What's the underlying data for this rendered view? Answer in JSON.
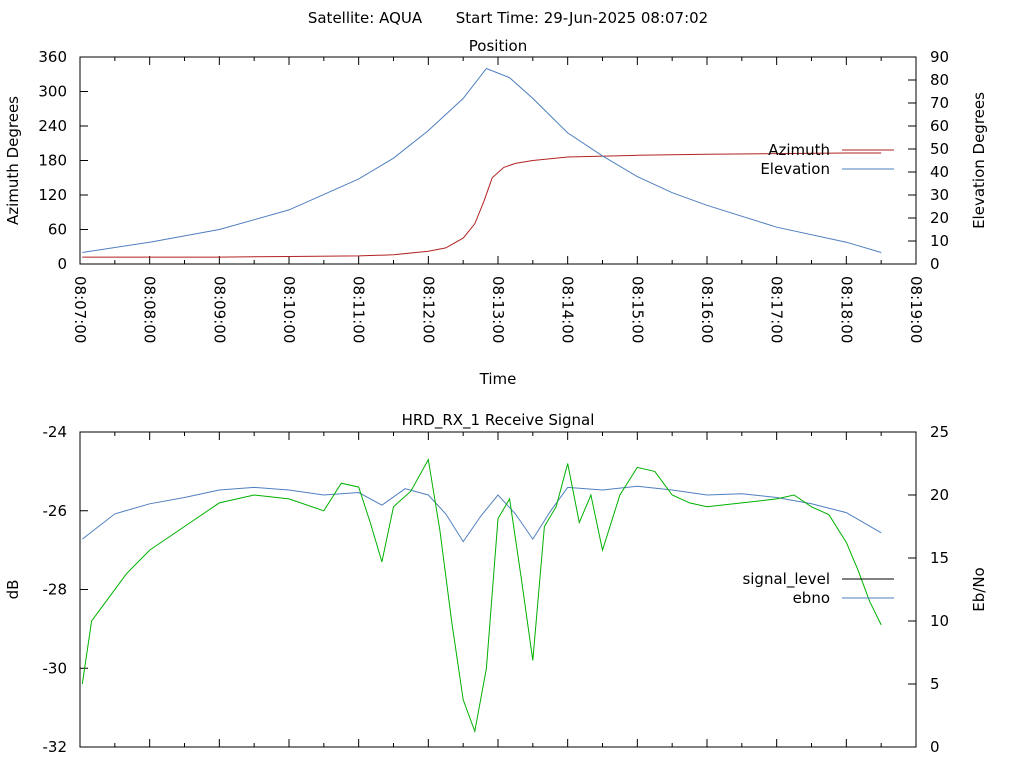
{
  "header": {
    "satellite": "Satellite: AQUA",
    "start_time": "Start Time: 29-Jun-2025 08:07:02"
  },
  "chart_data": [
    {
      "id": "position",
      "type": "line",
      "title": "Position",
      "xlabel": "Time",
      "ylabel": "Azimuth Degrees",
      "y2label": "Elevation Degrees",
      "xlim": [
        "08:07:00",
        "08:19:00"
      ],
      "x_ticks": [
        "08:07:00",
        "08:08:00",
        "08:09:00",
        "08:10:00",
        "08:11:00",
        "08:12:00",
        "08:13:00",
        "08:14:00",
        "08:15:00",
        "08:16:00",
        "08:17:00",
        "08:18:00",
        "08:19:00"
      ],
      "ylim": [
        0,
        360
      ],
      "y_ticks": [
        0,
        60,
        120,
        180,
        240,
        300,
        360
      ],
      "y2lim": [
        0,
        90
      ],
      "y2_ticks": [
        0,
        10,
        20,
        30,
        40,
        50,
        60,
        70,
        80,
        90
      ],
      "legend_position": "right",
      "series": [
        {
          "name": "Azimuth",
          "axis": "y",
          "color": "#b22222",
          "x": [
            "08:07:02",
            "08:08:00",
            "08:09:00",
            "08:10:00",
            "08:11:00",
            "08:11:30",
            "08:12:00",
            "08:12:15",
            "08:12:30",
            "08:12:40",
            "08:12:48",
            "08:12:55",
            "08:13:05",
            "08:13:15",
            "08:13:30",
            "08:14:00",
            "08:15:00",
            "08:16:00",
            "08:17:00",
            "08:18:00",
            "08:18:30"
          ],
          "values": [
            12,
            12,
            12,
            13,
            14,
            16,
            22,
            28,
            45,
            70,
            110,
            150,
            168,
            175,
            180,
            186,
            189,
            191,
            192,
            193,
            193
          ]
        },
        {
          "name": "Elevation",
          "axis": "y2",
          "color": "#4f7fbf",
          "x": [
            "08:07:02",
            "08:08:00",
            "08:09:00",
            "08:10:00",
            "08:11:00",
            "08:11:30",
            "08:12:00",
            "08:12:30",
            "08:12:50",
            "08:13:10",
            "08:13:30",
            "08:14:00",
            "08:14:30",
            "08:15:00",
            "08:15:30",
            "08:16:00",
            "08:17:00",
            "08:18:00",
            "08:18:30"
          ],
          "values": [
            5,
            9.5,
            15,
            23.5,
            37,
            46,
            58,
            72,
            85,
            81,
            72,
            57,
            47,
            38,
            31,
            25.5,
            16,
            9.5,
            5
          ]
        }
      ]
    },
    {
      "id": "receive-signal",
      "type": "line",
      "title": "HRD_RX_1 Receive Signal",
      "ylabel": "dB",
      "y2label": "Eb/No",
      "xlim": [
        "08:07:00",
        "08:19:00"
      ],
      "ylim": [
        -32,
        -24
      ],
      "y_ticks": [
        -32,
        -30,
        -28,
        -26,
        -24
      ],
      "y2lim": [
        0,
        25
      ],
      "y2_ticks": [
        0,
        5,
        10,
        15,
        20,
        25
      ],
      "legend_position": "right",
      "series": [
        {
          "name": "signal_level",
          "axis": "y",
          "color": "#000000",
          "x": [],
          "values": []
        },
        {
          "name": "ebno",
          "axis": "y2",
          "color": "#4f7fbf",
          "x": [
            "08:07:02",
            "08:07:30",
            "08:08:00",
            "08:08:30",
            "08:09:00",
            "08:09:30",
            "08:10:00",
            "08:10:30",
            "08:11:00",
            "08:11:20",
            "08:11:40",
            "08:12:00",
            "08:12:15",
            "08:12:30",
            "08:12:45",
            "08:13:00",
            "08:13:15",
            "08:13:30",
            "08:13:45",
            "08:14:00",
            "08:14:30",
            "08:15:00",
            "08:15:30",
            "08:16:00",
            "08:16:30",
            "08:17:00",
            "08:17:30",
            "08:18:00",
            "08:18:30"
          ],
          "values": [
            16.5,
            18.5,
            19.3,
            19.8,
            20.4,
            20.6,
            20.4,
            20.0,
            20.2,
            19.2,
            20.5,
            20.0,
            18.5,
            16.3,
            18.3,
            20.0,
            18.5,
            16.5,
            18.7,
            20.6,
            20.4,
            20.7,
            20.4,
            20.0,
            20.1,
            19.8,
            19.3,
            18.6,
            17.0
          ]
        },
        {
          "name": "",
          "axis": "y",
          "color": "#00b000",
          "x": [
            "08:07:02",
            "08:07:10",
            "08:07:20",
            "08:07:40",
            "08:08:00",
            "08:08:30",
            "08:09:00",
            "08:09:30",
            "08:10:00",
            "08:10:30",
            "08:10:45",
            "08:11:00",
            "08:11:10",
            "08:11:20",
            "08:11:30",
            "08:11:45",
            "08:12:00",
            "08:12:10",
            "08:12:20",
            "08:12:30",
            "08:12:40",
            "08:12:50",
            "08:13:00",
            "08:13:10",
            "08:13:20",
            "08:13:30",
            "08:13:40",
            "08:13:50",
            "08:14:00",
            "08:14:10",
            "08:14:20",
            "08:14:30",
            "08:14:45",
            "08:15:00",
            "08:15:15",
            "08:15:30",
            "08:15:45",
            "08:16:00",
            "08:16:30",
            "08:17:00",
            "08:17:15",
            "08:17:30",
            "08:17:45",
            "08:18:00",
            "08:18:10",
            "08:18:20",
            "08:18:30"
          ],
          "values": [
            -30.4,
            -28.8,
            -28.4,
            -27.6,
            -27.0,
            -26.4,
            -25.8,
            -25.6,
            -25.7,
            -26.0,
            -25.3,
            -25.4,
            -26.3,
            -27.3,
            -25.9,
            -25.5,
            -24.7,
            -26.5,
            -28.8,
            -30.8,
            -31.6,
            -30.0,
            -26.2,
            -25.7,
            -27.7,
            -29.8,
            -26.4,
            -25.9,
            -24.8,
            -26.3,
            -25.6,
            -27.0,
            -25.6,
            -24.9,
            -25.0,
            -25.6,
            -25.8,
            -25.9,
            -25.8,
            -25.7,
            -25.6,
            -25.9,
            -26.1,
            -26.8,
            -27.5,
            -28.3,
            -28.9
          ]
        }
      ]
    }
  ]
}
